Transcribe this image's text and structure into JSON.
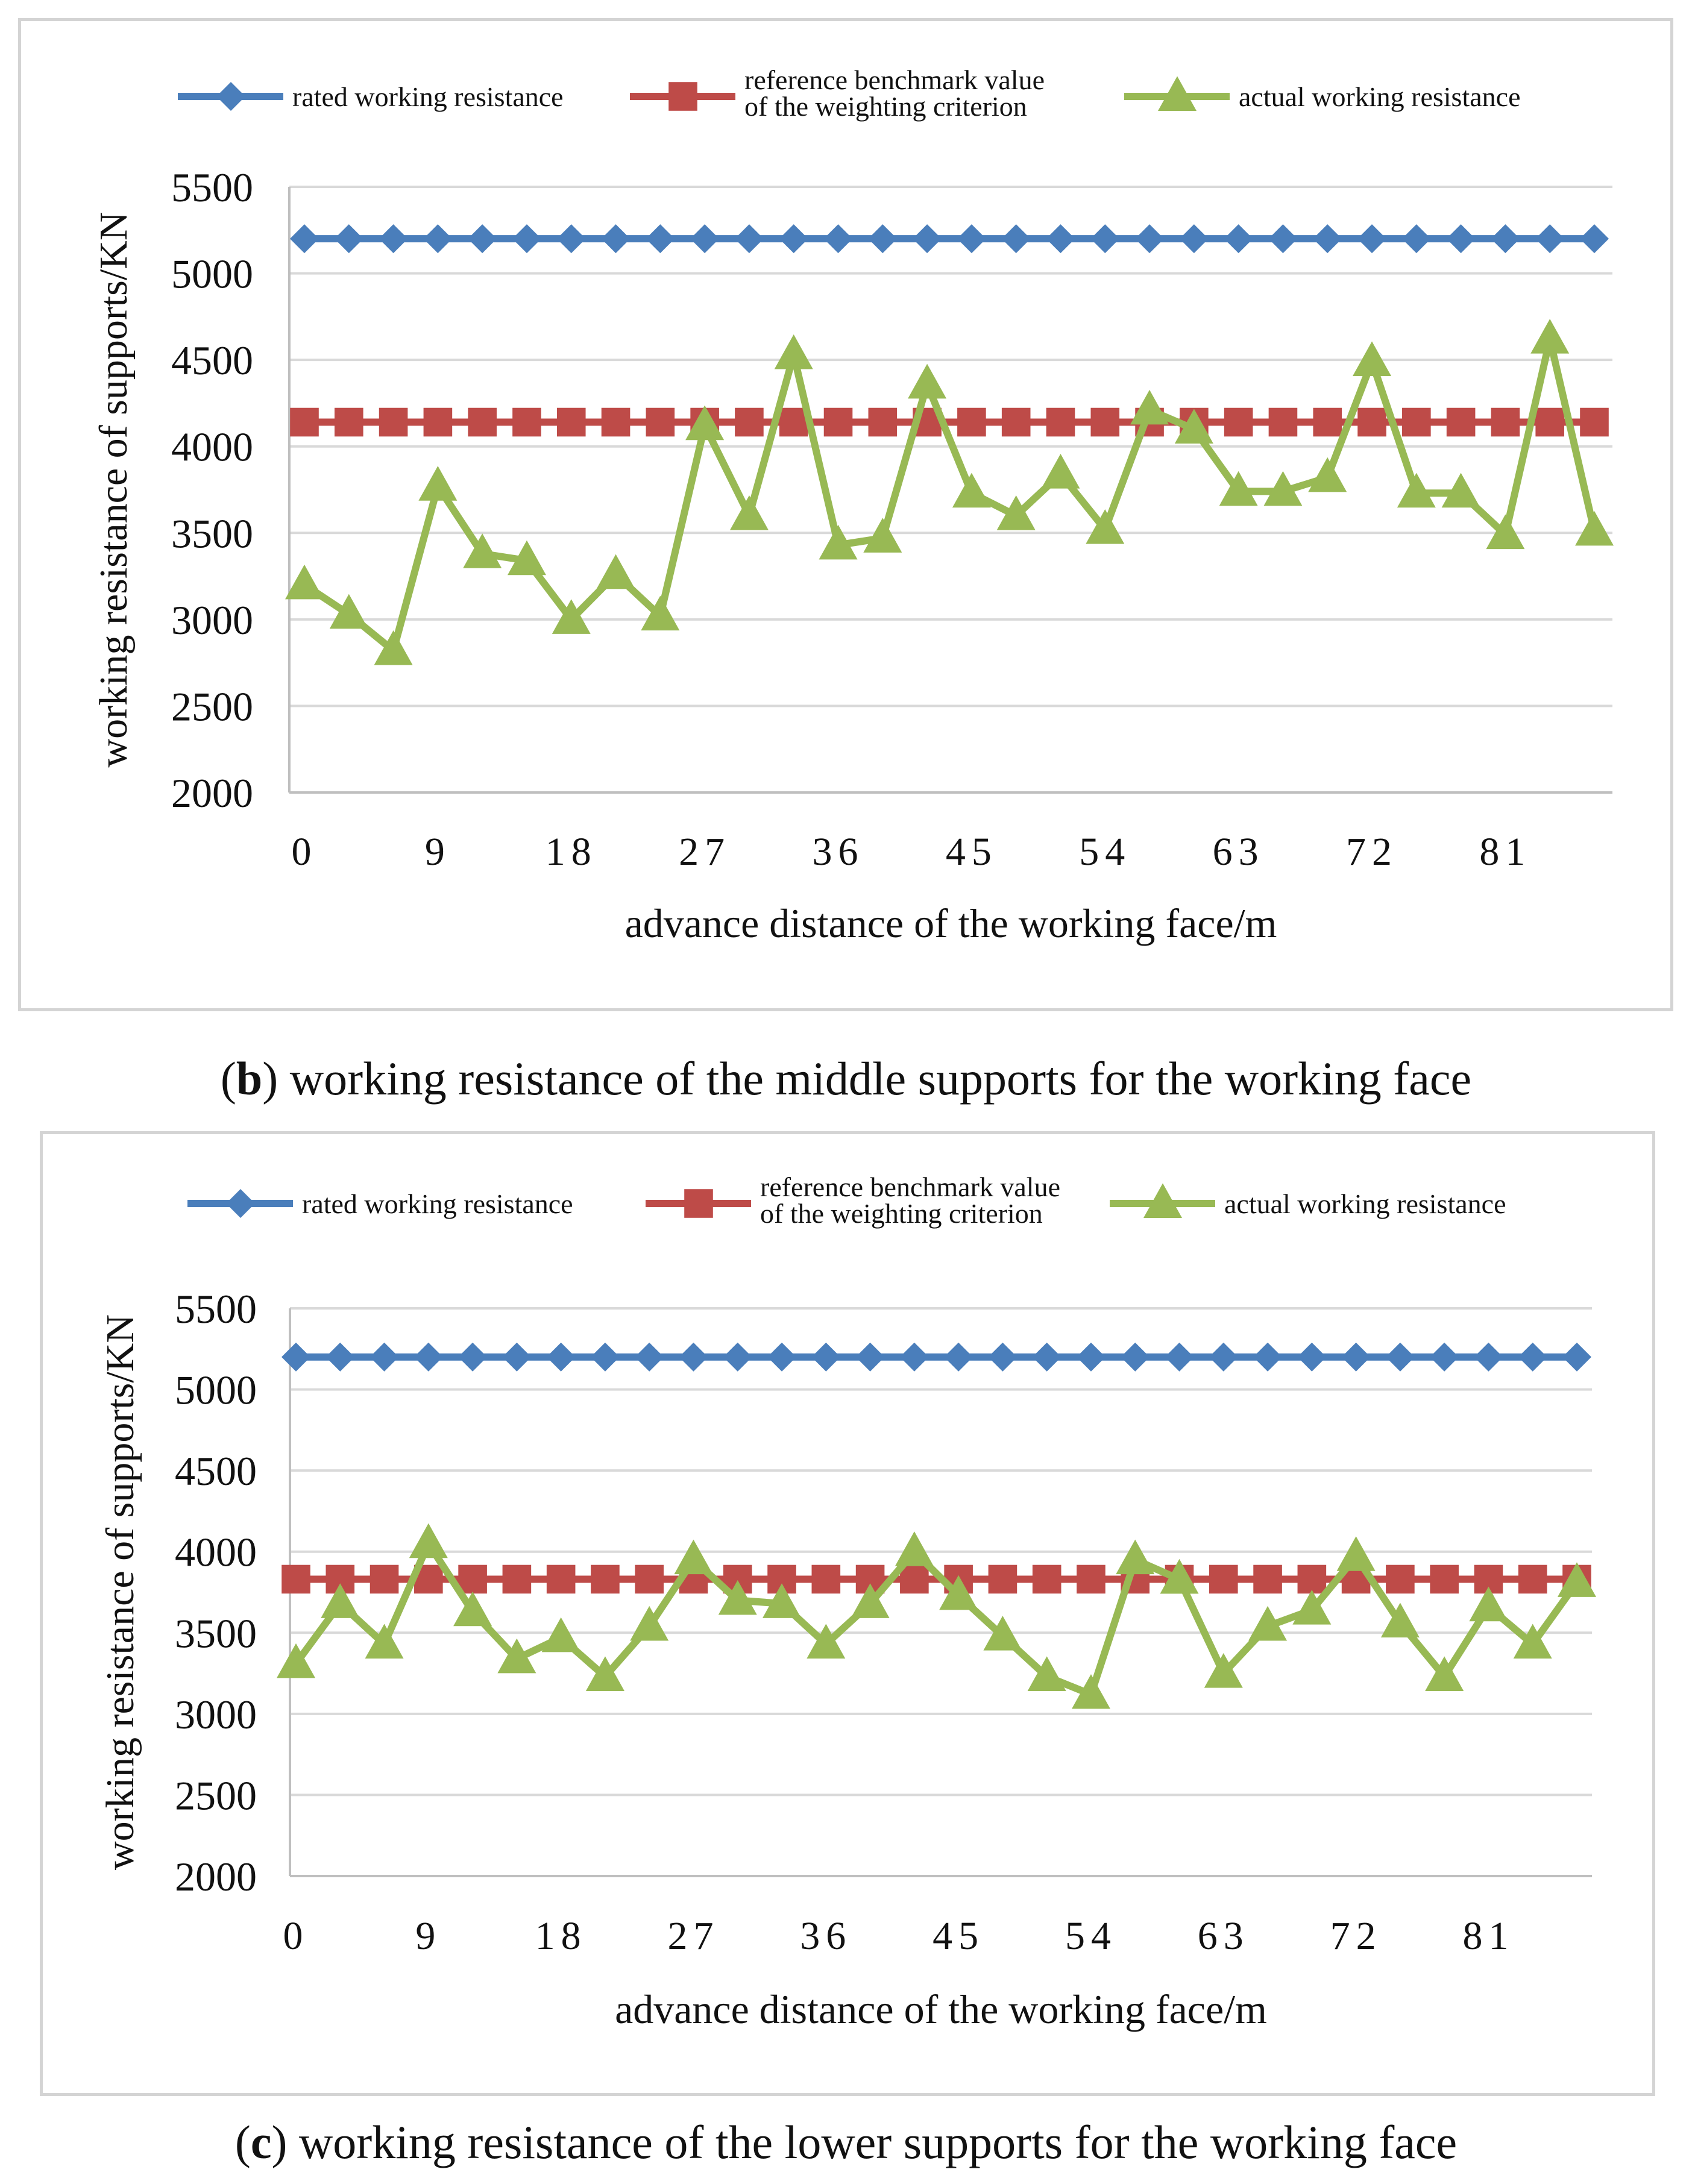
{
  "colors": {
    "rated": "#4a7ebb",
    "benchmark": "#be4b48",
    "actual": "#98b954",
    "grid": "#d9d9d9",
    "axis": "#bfbfbf",
    "text": "#111111"
  },
  "chart_data": [
    {
      "type": "line",
      "panel_letter": "b",
      "caption": "working resistance of the middle supports for the working face",
      "xlabel": "advance distance of the working face/m",
      "ylabel": "working resistance of supports/KN",
      "ylim": [
        2000,
        5500
      ],
      "yticks": [
        2000,
        2500,
        3000,
        3500,
        4000,
        4500,
        5000,
        5500
      ],
      "xtick_labels": [
        "0",
        "9",
        "18",
        "27",
        "36",
        "45",
        "54",
        "63",
        "72",
        "81"
      ],
      "x": [
        0,
        3,
        6,
        9,
        12,
        15,
        18,
        21,
        24,
        27,
        30,
        33,
        36,
        39,
        42,
        45,
        48,
        51,
        54,
        57,
        60,
        63,
        66,
        69,
        72,
        75,
        78,
        81,
        84,
        87
      ],
      "series": [
        {
          "name": "rated working resistance",
          "marker": "diamond",
          "values": [
            5200,
            5200,
            5200,
            5200,
            5200,
            5200,
            5200,
            5200,
            5200,
            5200,
            5200,
            5200,
            5200,
            5200,
            5200,
            5200,
            5200,
            5200,
            5200,
            5200,
            5200,
            5200,
            5200,
            5200,
            5200,
            5200,
            5200,
            5200,
            5200,
            5200
          ]
        },
        {
          "name": "reference benchmark value of the weighting criterion",
          "marker": "square",
          "values": [
            4140,
            4140,
            4140,
            4140,
            4140,
            4140,
            4140,
            4140,
            4140,
            4140,
            4140,
            4140,
            4140,
            4140,
            4140,
            4140,
            4140,
            4140,
            4140,
            4140,
            4140,
            4140,
            4140,
            4140,
            4140,
            4140,
            4140,
            4140,
            4140,
            4140
          ]
        },
        {
          "name": "actual working resistance",
          "marker": "triangle",
          "values": [
            3200,
            3030,
            2820,
            3770,
            3380,
            3340,
            3000,
            3260,
            3020,
            4120,
            3600,
            4530,
            3430,
            3470,
            4360,
            3730,
            3600,
            3840,
            3520,
            4210,
            4100,
            3740,
            3740,
            3820,
            4490,
            3730,
            3730,
            3490,
            4620,
            3510
          ]
        }
      ],
      "legend": [
        "rated working resistance",
        "reference benchmark value of the weighting criterion",
        "actual working resistance"
      ]
    },
    {
      "type": "line",
      "panel_letter": "c",
      "caption": "working resistance of the lower supports for the working face",
      "xlabel": "advance distance of the working face/m",
      "ylabel": "working resistance of supports/KN",
      "ylim": [
        2000,
        5500
      ],
      "yticks": [
        2000,
        2500,
        3000,
        3500,
        4000,
        4500,
        5000,
        5500
      ],
      "xtick_labels": [
        "0",
        "9",
        "18",
        "27",
        "36",
        "45",
        "54",
        "63",
        "72",
        "81"
      ],
      "x": [
        0,
        3,
        6,
        9,
        12,
        15,
        18,
        21,
        24,
        27,
        30,
        33,
        36,
        39,
        42,
        45,
        48,
        51,
        54,
        57,
        60,
        63,
        66,
        69,
        72,
        75,
        78,
        81,
        84,
        87
      ],
      "series": [
        {
          "name": "rated working resistance",
          "marker": "diamond",
          "values": [
            5200,
            5200,
            5200,
            5200,
            5200,
            5200,
            5200,
            5200,
            5200,
            5200,
            5200,
            5200,
            5200,
            5200,
            5200,
            5200,
            5200,
            5200,
            5200,
            5200,
            5200,
            5200,
            5200,
            5200,
            5200,
            5200,
            5200,
            5200,
            5200,
            5200
          ]
        },
        {
          "name": "reference benchmark value of the weighting criterion",
          "marker": "square",
          "values": [
            3830,
            3830,
            3830,
            3830,
            3830,
            3830,
            3830,
            3830,
            3830,
            3830,
            3830,
            3830,
            3830,
            3830,
            3830,
            3830,
            3830,
            3830,
            3830,
            3830,
            3830,
            3830,
            3830,
            3830,
            3830,
            3830,
            3830,
            3830,
            3830,
            3830
          ]
        },
        {
          "name": "actual working resistance",
          "marker": "triangle",
          "values": [
            3310,
            3680,
            3430,
            4050,
            3630,
            3340,
            3470,
            3230,
            3540,
            3950,
            3700,
            3680,
            3430,
            3680,
            4000,
            3730,
            3480,
            3230,
            3120,
            3950,
            3830,
            3250,
            3540,
            3640,
            3970,
            3560,
            3230,
            3660,
            3430,
            3810
          ]
        }
      ],
      "legend": [
        "rated working resistance",
        "reference benchmark value of the weighting criterion",
        "actual working resistance"
      ]
    }
  ]
}
